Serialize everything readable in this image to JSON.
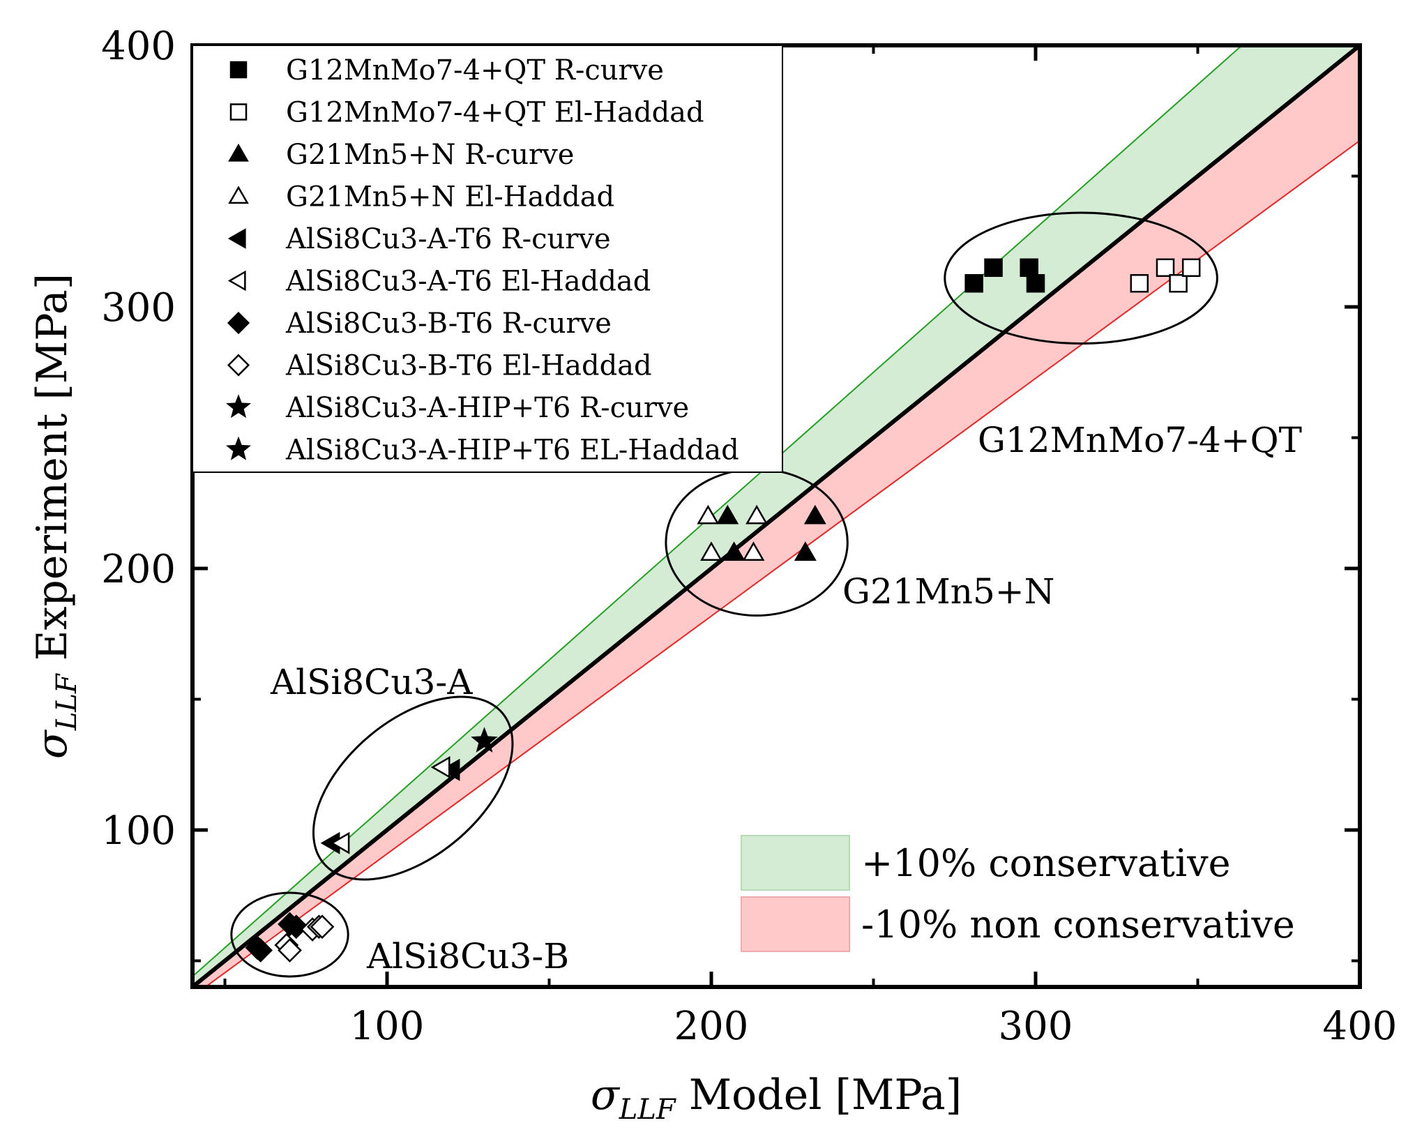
{
  "chart_data": {
    "type": "scatter",
    "x_axis": {
      "label_symbol": "σ",
      "label_subscript": "LLF",
      "label_text": " Model [MPa]",
      "range": [
        40,
        400
      ],
      "major_ticks": [
        100,
        200,
        300,
        400
      ],
      "minor_ticks": [
        50,
        150,
        250,
        350
      ]
    },
    "y_axis": {
      "label_symbol": "σ",
      "label_subscript": "LLF",
      "label_text": " Experiment [MPa]",
      "range": [
        40,
        400
      ],
      "major_ticks": [
        100,
        200,
        300,
        400
      ],
      "minor_ticks": [
        50,
        150,
        250,
        350
      ]
    },
    "reference_lines": [
      {
        "name": "1:1 line",
        "slope": 1.0,
        "color": "#000000"
      },
      {
        "name": "+10% line",
        "slope": 1.1,
        "color": "#22a022"
      },
      {
        "name": "-10% line",
        "slope": 0.909,
        "color": "#ee2222"
      }
    ],
    "bands": [
      {
        "label": "+10% conservative",
        "from_slope": 1.0,
        "to_slope": 1.1,
        "color": "#d3ecd3"
      },
      {
        "label": "-10% non conservative",
        "from_slope": 0.909,
        "to_slope": 1.0,
        "color": "#ffc9c9"
      }
    ],
    "series": [
      {
        "name": "G12MnMo7-4+QT R-curve",
        "marker": "square",
        "filled": true,
        "points": [
          [
            281,
            309
          ],
          [
            287,
            315
          ],
          [
            298,
            315
          ],
          [
            300,
            309
          ]
        ]
      },
      {
        "name": "G12MnMo7-4+QT El-Haddad",
        "marker": "square",
        "filled": false,
        "points": [
          [
            332,
            309
          ],
          [
            340,
            315
          ],
          [
            344,
            309
          ],
          [
            348,
            315
          ]
        ]
      },
      {
        "name": "G21Mn5+N R-curve",
        "marker": "triangle-up",
        "filled": true,
        "points": [
          [
            205,
            220
          ],
          [
            207,
            206
          ],
          [
            229,
            206
          ],
          [
            232,
            220
          ]
        ]
      },
      {
        "name": "G21Mn5+N El-Haddad",
        "marker": "triangle-up",
        "filled": false,
        "points": [
          [
            199,
            220
          ],
          [
            200,
            206
          ],
          [
            213,
            206
          ],
          [
            214,
            220
          ]
        ]
      },
      {
        "name": "AlSi8Cu3-A-T6 R-curve",
        "marker": "triangle-left",
        "filled": true,
        "points": [
          [
            83,
            95
          ],
          [
            120,
            123
          ]
        ]
      },
      {
        "name": "AlSi8Cu3-A-T6 El-Haddad",
        "marker": "triangle-left",
        "filled": false,
        "points": [
          [
            86,
            95
          ],
          [
            117,
            124
          ]
        ]
      },
      {
        "name": "AlSi8Cu3-B-T6 R-curve",
        "marker": "diamond",
        "filled": true,
        "points": [
          [
            60,
            55
          ],
          [
            61,
            54
          ],
          [
            70,
            64
          ],
          [
            72,
            63
          ]
        ]
      },
      {
        "name": "AlSi8Cu3-B-T6 El-Haddad",
        "marker": "diamond",
        "filled": false,
        "points": [
          [
            69,
            56
          ],
          [
            70,
            54
          ],
          [
            77,
            62
          ],
          [
            79,
            63
          ],
          [
            80,
            63
          ]
        ]
      },
      {
        "name": "AlSi8Cu3-A-HIP+T6 R-curve",
        "marker": "star",
        "filled": true,
        "points": [
          [
            130,
            134
          ]
        ]
      },
      {
        "name": "AlSi8Cu3-A-HIP+T6 EL-Haddad",
        "marker": "star",
        "filled": true,
        "points": []
      }
    ],
    "group_annotations": [
      {
        "label": "G12MnMo7-4+QT",
        "anchor_data": [
          312,
          245
        ],
        "ellipse": {
          "cx": 314,
          "cy": 311,
          "rx": 42,
          "ry": 25,
          "angle": 0
        }
      },
      {
        "label": "G21Mn5+N",
        "anchor_data": [
          222,
          200
        ],
        "ellipse": {
          "cx": 214,
          "cy": 210,
          "rx": 28,
          "ry": 28,
          "angle": 0
        }
      },
      {
        "label": "AlSi8Cu3-A",
        "anchor_data": [
          75,
          150
        ],
        "ellipse": {
          "cx": 108,
          "cy": 116,
          "rx": 36,
          "ry": 26,
          "angle": -40
        }
      },
      {
        "label": "AlSi8Cu3-B",
        "anchor_data": [
          85,
          50
        ],
        "ellipse": {
          "cx": 70,
          "cy": 60,
          "rx": 18,
          "ry": 16,
          "angle": 0
        }
      }
    ],
    "legend_position": "top-left"
  }
}
